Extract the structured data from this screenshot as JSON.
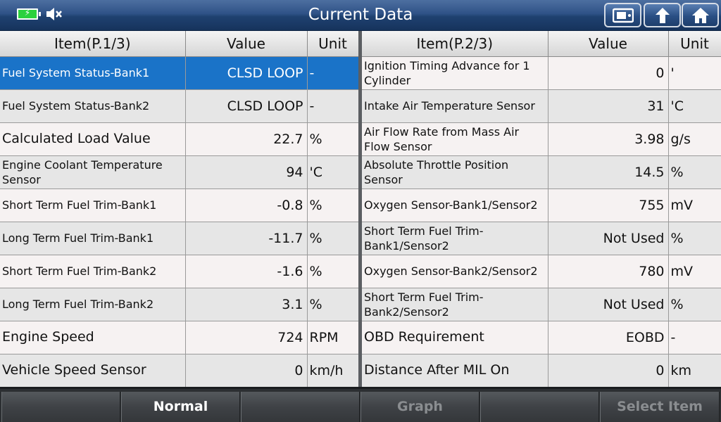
{
  "title": "Current Data",
  "icons": {
    "battery": "battery-charging-icon",
    "speaker": "speaker-muted-icon",
    "toolbar": [
      "screenshot-icon",
      "back-icon",
      "home-icon"
    ]
  },
  "left": {
    "headers": {
      "item": "Item(P.1/3)",
      "value": "Value",
      "unit": "Unit"
    },
    "rows": [
      {
        "item": "Fuel System Status-Bank1",
        "value": "CLSD LOOP",
        "unit": "-"
      },
      {
        "item": "Fuel System Status-Bank2",
        "value": "CLSD LOOP",
        "unit": "-"
      },
      {
        "item": "Calculated Load Value",
        "value": "22.7",
        "unit": "%"
      },
      {
        "item": "Engine Coolant Temperature Sensor",
        "value": "94",
        "unit": "'C"
      },
      {
        "item": "Short Term Fuel Trim-Bank1",
        "value": "-0.8",
        "unit": "%"
      },
      {
        "item": "Long Term Fuel Trim-Bank1",
        "value": "-11.7",
        "unit": "%"
      },
      {
        "item": "Short Term Fuel Trim-Bank2",
        "value": "-1.6",
        "unit": "%"
      },
      {
        "item": "Long Term Fuel Trim-Bank2",
        "value": "3.1",
        "unit": "%"
      },
      {
        "item": "Engine Speed",
        "value": "724",
        "unit": "RPM"
      },
      {
        "item": "Vehicle Speed Sensor",
        "value": "0",
        "unit": "km/h"
      }
    ]
  },
  "right": {
    "headers": {
      "item": "Item(P.2/3)",
      "value": "Value",
      "unit": "Unit"
    },
    "rows": [
      {
        "item": "Ignition Timing Advance for 1 Cylinder",
        "value": "0",
        "unit": "'"
      },
      {
        "item": "Intake Air Temperature Sensor",
        "value": "31",
        "unit": "'C"
      },
      {
        "item": "Air Flow Rate from Mass Air Flow Sensor",
        "value": "3.98",
        "unit": "g/s"
      },
      {
        "item": "Absolute Throttle Position Sensor",
        "value": "14.5",
        "unit": "%"
      },
      {
        "item": "Oxygen Sensor-Bank1/Sensor2",
        "value": "755",
        "unit": "mV"
      },
      {
        "item": "Short Term Fuel Trim-Bank1/Sensor2",
        "value": "Not Used",
        "unit": "%"
      },
      {
        "item": "Oxygen Sensor-Bank2/Sensor2",
        "value": "780",
        "unit": "mV"
      },
      {
        "item": "Short Term Fuel Trim-Bank2/Sensor2",
        "value": "Not Used",
        "unit": "%"
      },
      {
        "item": "OBD Requirement",
        "value": "EOBD",
        "unit": "-"
      },
      {
        "item": "Distance After MIL On",
        "value": "0",
        "unit": "km"
      }
    ]
  },
  "bottom": {
    "buttons": [
      "",
      "Normal",
      "",
      "Graph",
      "",
      "Select Item"
    ]
  },
  "colors": {
    "selected_row": "#1a73c8",
    "title_bar": "#2f5287"
  }
}
